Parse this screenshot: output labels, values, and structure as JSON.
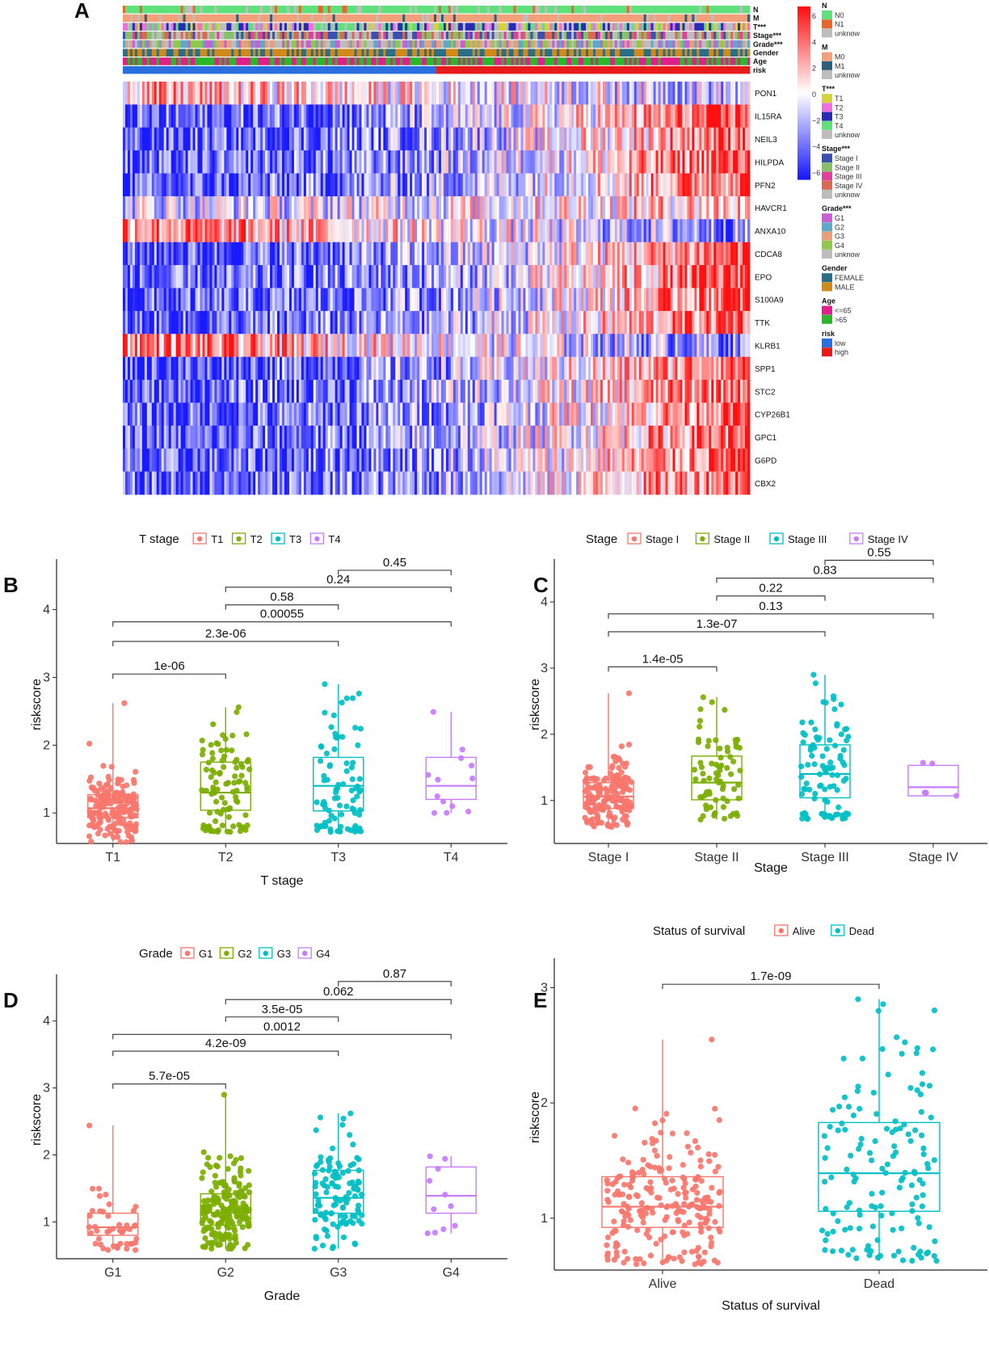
{
  "panel_labels": [
    "A",
    "B",
    "C",
    "D",
    "E"
  ],
  "colors": {
    "heat_low": "#1a1aff",
    "heat_mid": "#ffffff",
    "heat_high": "#ff1010",
    "red": "#F8766D",
    "green": "#7CAE00",
    "cyan": "#00BFC4",
    "purple": "#C77CFF"
  },
  "heatmap": {
    "annotation_rows": [
      "N",
      "M",
      "T***",
      "Stage***",
      "Grade***",
      "Gender",
      "Age",
      "risk"
    ],
    "genes": [
      "PON1",
      "IL15RA",
      "NEIL3",
      "HILPDA",
      "PFN2",
      "HAVCR1",
      "ANXA10",
      "CDCA8",
      "EPO",
      "S100A9",
      "TTK",
      "KLRB1",
      "SPP1",
      "STC2",
      "CYP26B1",
      "GPC1",
      "G6PD",
      "CBX2"
    ],
    "colorbar_ticks": [
      "6",
      "4",
      "2",
      "0",
      "−2",
      "−4",
      "−6"
    ],
    "legends": [
      {
        "title": "N",
        "items": [
          {
            "label": "N0",
            "color": "#5ee07a"
          },
          {
            "label": "N1",
            "color": "#e8662a"
          },
          {
            "label": "unknow",
            "color": "#bdbdbd"
          }
        ]
      },
      {
        "title": "M",
        "items": [
          {
            "label": "M0",
            "color": "#f2a07a"
          },
          {
            "label": "M1",
            "color": "#2d5f7a"
          },
          {
            "label": "unknow",
            "color": "#bdbdbd"
          }
        ]
      },
      {
        "title": "T***",
        "items": [
          {
            "label": "T1",
            "color": "#d8d23a"
          },
          {
            "label": "T2",
            "color": "#f06ee0"
          },
          {
            "label": "T3",
            "color": "#2a2ab8"
          },
          {
            "label": "T4",
            "color": "#5ee07a"
          },
          {
            "label": "unknow",
            "color": "#bdbdbd"
          }
        ]
      },
      {
        "title": "Stage***",
        "items": [
          {
            "label": "Stage I",
            "color": "#3a4fb0"
          },
          {
            "label": "Stage II",
            "color": "#86c06a"
          },
          {
            "label": "Stage III",
            "color": "#e0409a"
          },
          {
            "label": "Stage IV",
            "color": "#d96a50"
          },
          {
            "label": "unknow",
            "color": "#bdbdbd"
          }
        ]
      },
      {
        "title": "Grade***",
        "items": [
          {
            "label": "G1",
            "color": "#c95fd0"
          },
          {
            "label": "G2",
            "color": "#5fa8c8"
          },
          {
            "label": "G3",
            "color": "#e8a07a"
          },
          {
            "label": "G4",
            "color": "#8fc84a"
          },
          {
            "label": "unknow",
            "color": "#bdbdbd"
          }
        ]
      },
      {
        "title": "Gender",
        "items": [
          {
            "label": "FEMALE",
            "color": "#2a6f8a"
          },
          {
            "label": "MALE",
            "color": "#d18a1a"
          }
        ]
      },
      {
        "title": "Age",
        "items": [
          {
            "label": "<=65",
            "color": "#e0208a"
          },
          {
            "label": ">65",
            "color": "#2ab82a"
          }
        ]
      },
      {
        "title": "risk",
        "items": [
          {
            "label": "low",
            "color": "#2a6fe0"
          },
          {
            "label": "high",
            "color": "#e81a1a"
          }
        ]
      }
    ]
  },
  "chart_data": [
    {
      "id": "B",
      "type": "boxplot",
      "legend_title": "T stage",
      "xlabel": "T stage",
      "ylabel": "riskscore",
      "ylim": [
        0.55,
        4.65
      ],
      "yticks": [
        1,
        2,
        3,
        4
      ],
      "groups": [
        {
          "name": "T1",
          "color": "#F8766D",
          "n": 180,
          "q1": 0.93,
          "median": 1.07,
          "q3": 1.27,
          "min": 0.57,
          "max": 2.62
        },
        {
          "name": "T2",
          "color": "#7CAE00",
          "n": 95,
          "q1": 1.04,
          "median": 1.3,
          "q3": 1.75,
          "min": 0.72,
          "max": 2.56
        },
        {
          "name": "T3",
          "color": "#00BFC4",
          "n": 85,
          "q1": 1.03,
          "median": 1.4,
          "q3": 1.82,
          "min": 0.72,
          "max": 2.9
        },
        {
          "name": "T4",
          "color": "#C77CFF",
          "n": 13,
          "q1": 1.2,
          "median": 1.4,
          "q3": 1.82,
          "min": 1.0,
          "max": 2.49
        }
      ],
      "comparisons": [
        {
          "from": 0,
          "to": 1,
          "y": 3.05,
          "label": "1e-06"
        },
        {
          "from": 0,
          "to": 2,
          "y": 3.53,
          "label": "2.3e-06"
        },
        {
          "from": 0,
          "to": 3,
          "y": 3.82,
          "label": "0.00055"
        },
        {
          "from": 1,
          "to": 2,
          "y": 4.07,
          "label": "0.58"
        },
        {
          "from": 1,
          "to": 3,
          "y": 4.33,
          "label": "0.24"
        },
        {
          "from": 2,
          "to": 3,
          "y": 4.58,
          "label": "0.45"
        }
      ]
    },
    {
      "id": "C",
      "type": "boxplot",
      "legend_title": "Stage",
      "xlabel": "Stage",
      "ylabel": "riskscore",
      "ylim": [
        0.35,
        4.55
      ],
      "yticks": [
        1,
        2,
        3,
        4
      ],
      "groups": [
        {
          "name": "Stage I",
          "color": "#F8766D",
          "n": 170,
          "q1": 0.88,
          "median": 1.06,
          "q3": 1.27,
          "min": 0.6,
          "max": 2.62
        },
        {
          "name": "Stage II",
          "color": "#7CAE00",
          "n": 70,
          "q1": 1.01,
          "median": 1.27,
          "q3": 1.67,
          "min": 0.71,
          "max": 2.56
        },
        {
          "name": "Stage III",
          "color": "#00BFC4",
          "n": 95,
          "q1": 1.04,
          "median": 1.4,
          "q3": 1.84,
          "min": 0.72,
          "max": 2.9
        },
        {
          "name": "Stage IV",
          "color": "#C77CFF",
          "n": 5,
          "q1": 1.07,
          "median": 1.2,
          "q3": 1.53,
          "min": 1.07,
          "max": 1.57
        }
      ],
      "comparisons": [
        {
          "from": 0,
          "to": 1,
          "y": 3.02,
          "label": "1.4e-05"
        },
        {
          "from": 0,
          "to": 2,
          "y": 3.55,
          "label": "1.3e-07"
        },
        {
          "from": 0,
          "to": 3,
          "y": 3.82,
          "label": "0.13"
        },
        {
          "from": 1,
          "to": 2,
          "y": 4.09,
          "label": "0.22"
        },
        {
          "from": 1,
          "to": 3,
          "y": 4.36,
          "label": "0.83"
        },
        {
          "from": 2,
          "to": 3,
          "y": 4.63,
          "label": "0.55"
        }
      ]
    },
    {
      "id": "D",
      "type": "boxplot",
      "legend_title": "Grade",
      "xlabel": "Grade",
      "ylabel": "riskscore",
      "ylim": [
        0.45,
        4.6
      ],
      "yticks": [
        1,
        2,
        3,
        4
      ],
      "groups": [
        {
          "name": "G1",
          "color": "#F8766D",
          "n": 45,
          "q1": 0.8,
          "median": 0.92,
          "q3": 1.13,
          "min": 0.58,
          "max": 2.44
        },
        {
          "name": "G2",
          "color": "#7CAE00",
          "n": 190,
          "q1": 0.95,
          "median": 1.14,
          "q3": 1.42,
          "min": 0.6,
          "max": 2.9
        },
        {
          "name": "G3",
          "color": "#00BFC4",
          "n": 115,
          "q1": 1.13,
          "median": 1.36,
          "q3": 1.77,
          "min": 0.6,
          "max": 2.62
        },
        {
          "name": "G4",
          "color": "#C77CFF",
          "n": 11,
          "q1": 1.13,
          "median": 1.39,
          "q3": 1.82,
          "min": 0.83,
          "max": 1.98
        }
      ],
      "comparisons": [
        {
          "from": 0,
          "to": 1,
          "y": 3.06,
          "label": "5.7e-05"
        },
        {
          "from": 0,
          "to": 2,
          "y": 3.55,
          "label": "4.2e-09"
        },
        {
          "from": 0,
          "to": 3,
          "y": 3.8,
          "label": "0.0012"
        },
        {
          "from": 1,
          "to": 2,
          "y": 4.06,
          "label": "3.5e-05"
        },
        {
          "from": 1,
          "to": 3,
          "y": 4.32,
          "label": "0.062"
        },
        {
          "from": 2,
          "to": 3,
          "y": 4.59,
          "label": "0.87"
        }
      ]
    },
    {
      "id": "E",
      "type": "boxplot",
      "legend_title": "Status of survival",
      "xlabel": "Status of survival",
      "ylabel": "riskscore",
      "ylim": [
        0.55,
        3.2
      ],
      "yticks": [
        1,
        2,
        3
      ],
      "groups": [
        {
          "name": "Alive",
          "color": "#F8766D",
          "n": 230,
          "q1": 0.92,
          "median": 1.1,
          "q3": 1.36,
          "min": 0.6,
          "max": 2.55
        },
        {
          "name": "Dead",
          "color": "#00BFC4",
          "n": 140,
          "q1": 1.06,
          "median": 1.39,
          "q3": 1.83,
          "min": 0.63,
          "max": 2.9
        }
      ],
      "comparisons": [
        {
          "from": 0,
          "to": 1,
          "y": 3.03,
          "label": "1.7e-09"
        }
      ]
    }
  ]
}
